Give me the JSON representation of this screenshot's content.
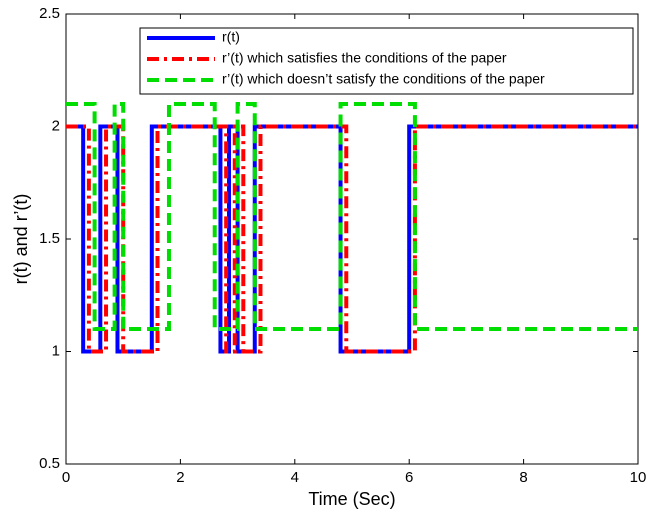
{
  "chart_data": {
    "type": "line",
    "xlabel": "Time (Sec)",
    "ylabel": "r(t) and r’(t)",
    "xlim": [
      0,
      10
    ],
    "ylim": [
      0.5,
      2.5
    ],
    "xticks": [
      0,
      2,
      4,
      6,
      8,
      10
    ],
    "yticks": [
      0.5,
      1,
      1.5,
      2,
      2.5
    ],
    "legend": "top-center",
    "series": [
      {
        "name": "r(t)",
        "color": "#0000ff",
        "line_style": "solid",
        "x": [
          0,
          0.3,
          0.3,
          0.6,
          0.6,
          0.9,
          0.9,
          1.5,
          1.5,
          2.7,
          2.7,
          2.85,
          2.85,
          3.0,
          3.0,
          3.3,
          3.3,
          4.8,
          4.8,
          6.0,
          6.0,
          10
        ],
        "values": [
          2,
          2,
          1,
          1,
          2,
          2,
          1,
          1,
          2,
          2,
          1,
          1,
          2,
          2,
          1,
          1,
          2,
          2,
          1,
          1,
          2,
          2
        ]
      },
      {
        "name": "r’(t) which satisfies the conditions of the paper",
        "color": "#ff0000",
        "line_style": "dashdot",
        "x": [
          0,
          0.4,
          0.4,
          0.7,
          0.7,
          1.0,
          1.0,
          1.6,
          1.6,
          2.8,
          2.8,
          2.95,
          2.95,
          3.1,
          3.1,
          3.4,
          3.4,
          4.9,
          4.9,
          6.1,
          6.1,
          10
        ],
        "values": [
          2,
          2,
          1,
          1,
          2,
          2,
          1,
          1,
          2,
          2,
          1,
          1,
          2,
          2,
          1,
          1,
          2,
          2,
          1,
          1,
          2,
          2
        ]
      },
      {
        "name": "r’(t) which doesn’t satisfy the conditions of the paper",
        "color": "#00dd00",
        "line_style": "dashed",
        "x": [
          0,
          0.5,
          0.5,
          0.85,
          0.85,
          1.0,
          1.0,
          1.8,
          1.8,
          2.6,
          2.6,
          3.0,
          3.0,
          3.3,
          3.3,
          3.9,
          3.9,
          4.8,
          4.8,
          6.1,
          6.1,
          10
        ],
        "values": [
          2.1,
          2.1,
          1.1,
          1.1,
          2.1,
          2.1,
          1.1,
          1.1,
          2.1,
          2.1,
          1.1,
          1.1,
          2.1,
          2.1,
          1.1,
          1.1,
          1.1,
          1.1,
          2.1,
          2.1,
          1.1,
          1.1
        ]
      }
    ]
  }
}
